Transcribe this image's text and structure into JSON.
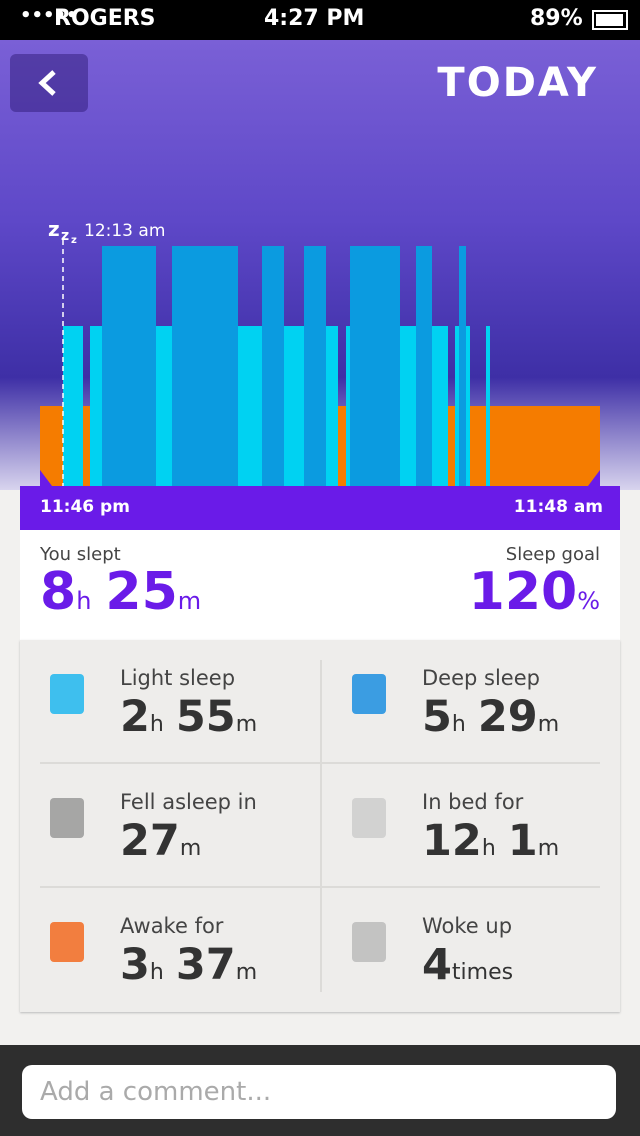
{
  "status_bar": {
    "carrier": "ROGERS",
    "time": "4:27 PM",
    "battery": "89%"
  },
  "header": {
    "title": "TODAY"
  },
  "chart": {
    "sleep_marker": "12:13 am",
    "start_time": "11:46 pm",
    "end_time": "11:48 am"
  },
  "summary": {
    "slept": {
      "label": "You slept",
      "parts": [
        {
          "num": 8,
          "unit": "h"
        },
        {
          "num": 25,
          "unit": "m"
        }
      ]
    },
    "goal": {
      "label": "Sleep goal",
      "parts": [
        {
          "num": 120,
          "unit": "%"
        }
      ]
    }
  },
  "stats": [
    {
      "label": "Light sleep",
      "parts": [
        {
          "num": 2,
          "unit": "h"
        },
        {
          "num": 55,
          "unit": "m"
        }
      ]
    },
    {
      "label": "Deep sleep",
      "parts": [
        {
          "num": 5,
          "unit": "h"
        },
        {
          "num": 29,
          "unit": "m"
        }
      ]
    },
    {
      "label": "Fell asleep in",
      "parts": [
        {
          "num": 27,
          "unit": "m"
        }
      ]
    },
    {
      "label": "In bed for",
      "parts": [
        {
          "num": 12,
          "unit": "h"
        },
        {
          "num": 1,
          "unit": "m"
        }
      ]
    },
    {
      "label": "Awake for",
      "parts": [
        {
          "num": 3,
          "unit": "h"
        },
        {
          "num": 37,
          "unit": "m"
        }
      ]
    },
    {
      "label": "Woke up",
      "parts": [
        {
          "num": 4,
          "unit": "times"
        }
      ]
    }
  ],
  "comment": {
    "placeholder": "Add a comment..."
  }
}
